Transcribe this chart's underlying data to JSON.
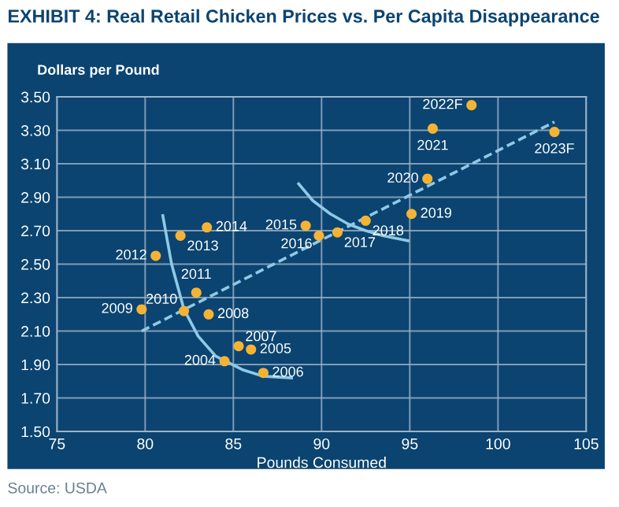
{
  "chart_data": {
    "type": "scatter",
    "title": "EXHIBIT 4: Real Retail Chicken Prices vs. Per Capita Disappearance",
    "xlabel": "Pounds Consumed",
    "ylabel": "Dollars per Pound",
    "annotations": [
      "Source: USDA",
      {
        "text": "2004",
        "x": 84.5,
        "y": 1.92
      },
      {
        "text": "2005",
        "x": 86.0,
        "y": 1.99
      },
      {
        "text": "2006",
        "x": 86.7,
        "y": 1.85
      },
      {
        "text": "2007",
        "x": 85.3,
        "y": 2.01
      },
      {
        "text": "2008",
        "x": 83.6,
        "y": 2.2
      },
      {
        "text": "2009",
        "x": 79.8,
        "y": 2.23
      },
      {
        "text": "2010",
        "x": 82.2,
        "y": 2.22
      },
      {
        "text": "2011",
        "x": 82.9,
        "y": 2.33
      },
      {
        "text": "2012",
        "x": 80.6,
        "y": 2.55
      },
      {
        "text": "2013",
        "x": 82.0,
        "y": 2.67
      },
      {
        "text": "2014",
        "x": 83.5,
        "y": 2.72
      },
      {
        "text": "2015",
        "x": 89.1,
        "y": 2.73
      },
      {
        "text": "2016",
        "x": 89.85,
        "y": 2.67
      },
      {
        "text": "2017",
        "x": 90.9,
        "y": 2.69
      },
      {
        "text": "2018",
        "x": 92.5,
        "y": 2.76
      },
      {
        "text": "2019",
        "x": 95.1,
        "y": 2.8
      },
      {
        "text": "2020",
        "x": 96.0,
        "y": 3.01
      },
      {
        "text": "2021",
        "x": 96.3,
        "y": 3.31
      },
      {
        "text": "2022F",
        "x": 98.5,
        "y": 3.45
      },
      {
        "text": "2023F",
        "x": 103.2,
        "y": 3.29
      }
    ],
    "series": [
      {
        "color": "#f5b335",
        "x": [
          84.5,
          86.0,
          86.7,
          85.3,
          83.6,
          79.8,
          82.2,
          82.9,
          80.6,
          82.0,
          83.5,
          89.1,
          89.85,
          90.9,
          92.5,
          95.1,
          96.0,
          96.3,
          98.5,
          103.2
        ],
        "values": [
          1.92,
          1.99,
          1.85,
          2.01,
          2.2,
          2.23,
          2.22,
          2.33,
          2.55,
          2.67,
          2.72,
          2.73,
          2.67,
          2.69,
          2.76,
          2.8,
          3.01,
          3.31,
          3.45,
          3.29
        ],
        "marker": "circle"
      },
      {
        "type": "line",
        "color": "#8ecae6",
        "line_style": "dashed",
        "x": [
          79.8,
          103.2
        ],
        "values": [
          2.1,
          3.35
        ]
      },
      {
        "type": "line",
        "color": "#8ecae6",
        "line_style": "solid",
        "x": [
          81.0,
          81.5,
          82.2,
          83.0,
          84.0,
          85.5,
          86.7,
          88.3
        ],
        "values": [
          2.79,
          2.5,
          2.23,
          2.07,
          1.95,
          1.87,
          1.83,
          1.82
        ]
      },
      {
        "type": "line",
        "color": "#8ecae6",
        "line_style": "solid",
        "x": [
          88.7,
          89.5,
          90.5,
          91.5,
          92.5,
          93.5,
          94.9
        ],
        "values": [
          2.98,
          2.88,
          2.8,
          2.74,
          2.7,
          2.67,
          2.64
        ]
      }
    ],
    "xlim": [
      75,
      105
    ],
    "xticks": [
      75,
      80,
      85,
      90,
      95,
      100,
      105
    ],
    "ylim": [
      1.5,
      3.5
    ],
    "yticks": [
      {
        "value": 1.5,
        "label": "1.50"
      },
      {
        "value": 1.7,
        "label": "1.70"
      },
      {
        "value": 1.9,
        "label": "1.90"
      },
      {
        "value": 2.1,
        "label": "2.10"
      },
      {
        "value": 2.3,
        "label": "2.30"
      },
      {
        "value": 2.5,
        "label": "2.50"
      },
      {
        "value": 2.7,
        "label": "2.70"
      },
      {
        "value": 2.9,
        "label": "2.90"
      },
      {
        "value": 3.1,
        "label": "3.10"
      },
      {
        "value": 3.3,
        "label": "3.30"
      },
      {
        "value": 3.5,
        "label": "3.50"
      }
    ],
    "grid": true,
    "legend": false
  }
}
